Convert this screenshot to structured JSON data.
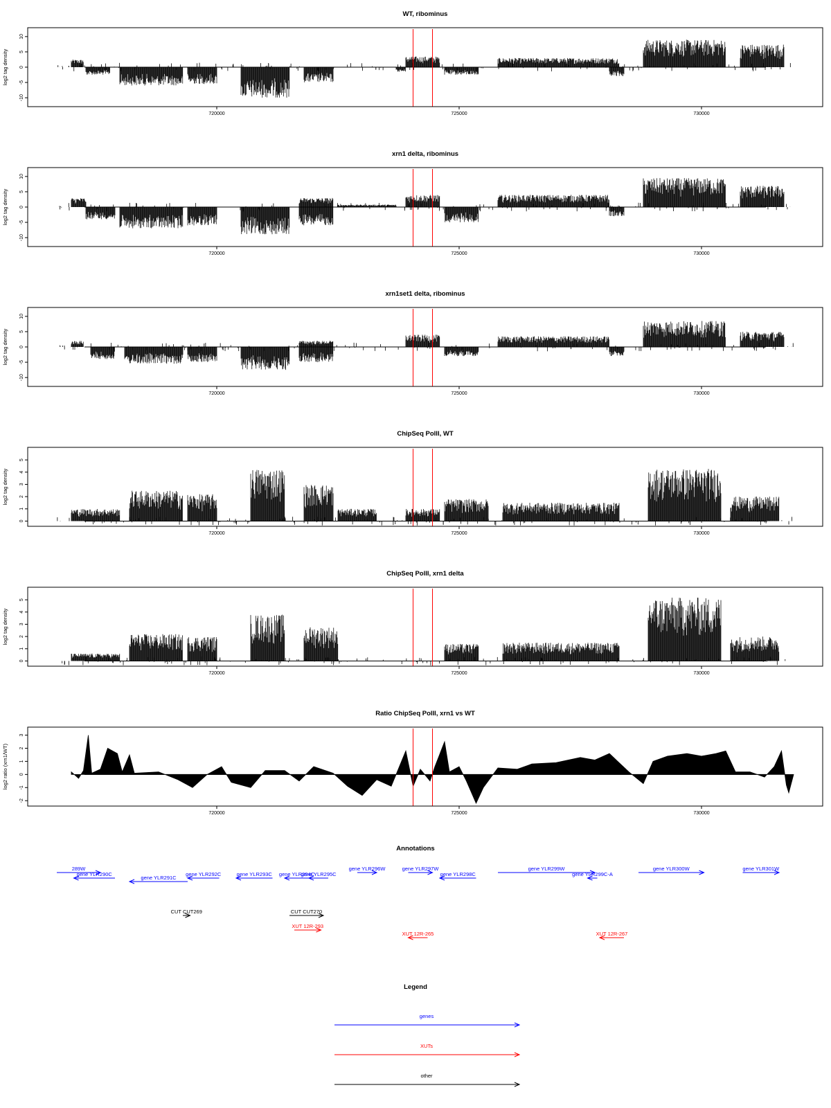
{
  "chart_data": [
    {
      "type": "area",
      "title": "WT, ribominus",
      "ylabel": "log2 tag density",
      "xlim": [
        716700,
        731900
      ],
      "ylim": [
        -12,
        12
      ],
      "x_ticks": [
        "720000",
        "725000",
        "730000"
      ],
      "y_ticks": [
        "-10",
        "-5",
        "0",
        "5",
        "10"
      ],
      "markers_x": [
        724050,
        724450
      ],
      "series": [
        {
          "segments": [
            {
              "x": [
                717000,
                717250
              ],
              "level": 2.5
            },
            {
              "x": [
                717300,
                717800
              ],
              "level": -2.5
            },
            {
              "x": [
                718000,
                719300
              ],
              "level": -6
            },
            {
              "x": [
                719400,
                720000
              ],
              "level": -5.5
            },
            {
              "x": [
                720500,
                721500
              ],
              "level": -10
            },
            {
              "x": [
                721800,
                722400
              ],
              "level": -5
            },
            {
              "x": [
                723700,
                723900
              ],
              "level": -1.5
            },
            {
              "x": [
                723900,
                724600
              ],
              "level": 3.5
            },
            {
              "x": [
                724700,
                725400
              ],
              "level": -2.5
            },
            {
              "x": [
                725800,
                728300
              ],
              "level": 3
            },
            {
              "x": [
                728100,
                728400
              ],
              "level": -3
            },
            {
              "x": [
                728800,
                730500
              ],
              "level": 9
            },
            {
              "x": [
                730800,
                731700
              ],
              "level": 7.5
            }
          ]
        }
      ]
    },
    {
      "type": "area",
      "title": "xrn1 delta, ribominus",
      "ylabel": "log2 tag density",
      "xlim": [
        716700,
        731900
      ],
      "ylim": [
        -12,
        12
      ],
      "x_ticks": [
        "720000",
        "725000",
        "730000"
      ],
      "y_ticks": [
        "-10",
        "-5",
        "0",
        "5",
        "10"
      ],
      "markers_x": [
        724050,
        724450
      ],
      "series": [
        {
          "segments": [
            {
              "x": [
                717000,
                717300
              ],
              "level": 3
            },
            {
              "x": [
                717300,
                717900
              ],
              "level": -4
            },
            {
              "x": [
                718000,
                719300
              ],
              "level": -7
            },
            {
              "x": [
                719400,
                720000
              ],
              "level": -6
            },
            {
              "x": [
                720500,
                721500
              ],
              "level": -9
            },
            {
              "x": [
                721700,
                722400
              ],
              "level": -6
            },
            {
              "x": [
                721700,
                722400
              ],
              "level": 3
            },
            {
              "x": [
                722500,
                723700
              ],
              "level": 0.8
            },
            {
              "x": [
                723900,
                724600
              ],
              "level": 4
            },
            {
              "x": [
                724700,
                725400
              ],
              "level": -5
            },
            {
              "x": [
                725800,
                728100
              ],
              "level": 4
            },
            {
              "x": [
                728100,
                728400
              ],
              "level": -3
            },
            {
              "x": [
                728800,
                730500
              ],
              "level": 9.5
            },
            {
              "x": [
                730800,
                731700
              ],
              "level": 7
            }
          ]
        }
      ]
    },
    {
      "type": "area",
      "title": "xrn1set1 delta, ribominus",
      "ylabel": "log2 tag density",
      "xlim": [
        716700,
        731900
      ],
      "ylim": [
        -12,
        12
      ],
      "x_ticks": [
        "720000",
        "725000",
        "730000"
      ],
      "y_ticks": [
        "-10",
        "-5",
        "0",
        "5",
        "10"
      ],
      "markers_x": [
        724050,
        724450
      ],
      "series": [
        {
          "segments": [
            {
              "x": [
                717000,
                717250
              ],
              "level": 2
            },
            {
              "x": [
                717400,
                717900
              ],
              "level": -4
            },
            {
              "x": [
                718100,
                719300
              ],
              "level": -5.5
            },
            {
              "x": [
                719400,
                720000
              ],
              "level": -5
            },
            {
              "x": [
                720500,
                721500
              ],
              "level": -7.5
            },
            {
              "x": [
                721700,
                722400
              ],
              "level": -5
            },
            {
              "x": [
                721700,
                722400
              ],
              "level": 2
            },
            {
              "x": [
                723900,
                724600
              ],
              "level": 4
            },
            {
              "x": [
                724700,
                725400
              ],
              "level": -3
            },
            {
              "x": [
                725800,
                728100
              ],
              "level": 3.5
            },
            {
              "x": [
                728100,
                728400
              ],
              "level": -3
            },
            {
              "x": [
                728800,
                730500
              ],
              "level": 8.5
            },
            {
              "x": [
                730800,
                731700
              ],
              "level": 5
            }
          ]
        }
      ]
    },
    {
      "type": "area",
      "title": "ChipSeq PolII, WT",
      "ylabel": "log2 tag density",
      "xlim": [
        716700,
        731900
      ],
      "ylim": [
        -0.2,
        5.8
      ],
      "x_ticks": [
        "720000",
        "725000",
        "730000"
      ],
      "y_ticks": [
        "0",
        "1",
        "2",
        "3",
        "4",
        "5"
      ],
      "markers_x": [
        724050,
        724450
      ],
      "series": [
        {
          "segments": [
            {
              "x": [
                717000,
                718000
              ],
              "level": 1
            },
            {
              "x": [
                718200,
                719300
              ],
              "level": 2.5
            },
            {
              "x": [
                719400,
                720000
              ],
              "level": 2.2
            },
            {
              "x": [
                720700,
                721400
              ],
              "level": 4.3
            },
            {
              "x": [
                721800,
                722400
              ],
              "level": 3
            },
            {
              "x": [
                722500,
                723300
              ],
              "level": 1
            },
            {
              "x": [
                723900,
                724600
              ],
              "level": 1
            },
            {
              "x": [
                724700,
                725600
              ],
              "level": 1.8
            },
            {
              "x": [
                725900,
                728300
              ],
              "level": 1.5
            },
            {
              "x": [
                728900,
                730400
              ],
              "level": 4.3
            },
            {
              "x": [
                730600,
                731600
              ],
              "level": 2
            }
          ]
        }
      ]
    },
    {
      "type": "area",
      "title": "ChipSeq PolII, xrn1 delta",
      "ylabel": "log2 tag density",
      "xlim": [
        716700,
        731900
      ],
      "ylim": [
        -0.2,
        5.8
      ],
      "x_ticks": [
        "720000",
        "725000",
        "730000"
      ],
      "y_ticks": [
        "0",
        "1",
        "2",
        "3",
        "4",
        "5"
      ],
      "markers_x": [
        724050,
        724450
      ],
      "series": [
        {
          "segments": [
            {
              "x": [
                717000,
                718000
              ],
              "level": 0.6
            },
            {
              "x": [
                718200,
                719300
              ],
              "level": 2.2
            },
            {
              "x": [
                719400,
                720000
              ],
              "level": 2
            },
            {
              "x": [
                720700,
                721400
              ],
              "level": 3.8
            },
            {
              "x": [
                721800,
                722500
              ],
              "level": 2.8
            },
            {
              "x": [
                724700,
                725400
              ],
              "level": 1.4
            },
            {
              "x": [
                725900,
                728300
              ],
              "level": 1.5
            },
            {
              "x": [
                728900,
                730400
              ],
              "level": 5.2
            },
            {
              "x": [
                730600,
                731600
              ],
              "level": 2
            }
          ]
        }
      ]
    },
    {
      "type": "area",
      "title": "Ratio ChipSeq PolII, xrn1 vs WT",
      "ylabel": "log2 ratio (xrn1/WT)",
      "xlim": [
        716700,
        731900
      ],
      "ylim": [
        -2.2,
        3.4
      ],
      "x_ticks": [
        "720000",
        "725000",
        "730000"
      ],
      "y_ticks": [
        "-2",
        "-1",
        "0",
        "1",
        "2",
        "3"
      ],
      "markers_x": [
        724050,
        724450
      ],
      "series": [
        {
          "points": [
            [
              717000,
              0.2
            ],
            [
              717150,
              -0.3
            ],
            [
              717250,
              0.3
            ],
            [
              717350,
              3.0
            ],
            [
              717420,
              0.1
            ],
            [
              717600,
              0.4
            ],
            [
              717750,
              2.0
            ],
            [
              717950,
              1.6
            ],
            [
              718050,
              0.2
            ],
            [
              718200,
              1.5
            ],
            [
              718300,
              0.1
            ],
            [
              718800,
              0.2
            ],
            [
              719200,
              -0.4
            ],
            [
              719500,
              -1.0
            ],
            [
              719800,
              0.0
            ],
            [
              720100,
              0.6
            ],
            [
              720300,
              -0.6
            ],
            [
              720700,
              -1.0
            ],
            [
              721000,
              0.3
            ],
            [
              721400,
              0.3
            ],
            [
              721700,
              -0.5
            ],
            [
              722000,
              0.6
            ],
            [
              722400,
              0.1
            ],
            [
              722700,
              -0.9
            ],
            [
              723000,
              -1.6
            ],
            [
              723300,
              -0.4
            ],
            [
              723600,
              -0.9
            ],
            [
              723900,
              1.8
            ],
            [
              724050,
              -0.9
            ],
            [
              724200,
              0.4
            ],
            [
              724400,
              -0.5
            ],
            [
              724500,
              0.6
            ],
            [
              724700,
              2.5
            ],
            [
              724800,
              0.2
            ],
            [
              725000,
              0.6
            ],
            [
              725150,
              -0.5
            ],
            [
              725350,
              -2.2
            ],
            [
              725500,
              -1.0
            ],
            [
              725800,
              0.5
            ],
            [
              726200,
              0.4
            ],
            [
              726500,
              0.8
            ],
            [
              727000,
              0.9
            ],
            [
              727500,
              1.3
            ],
            [
              727800,
              1.1
            ],
            [
              728100,
              1.6
            ],
            [
              728500,
              0.2
            ],
            [
              728800,
              -0.7
            ],
            [
              729000,
              1.0
            ],
            [
              729300,
              1.4
            ],
            [
              729700,
              1.6
            ],
            [
              730000,
              1.4
            ],
            [
              730300,
              1.6
            ],
            [
              730500,
              1.8
            ],
            [
              730700,
              0.2
            ],
            [
              731000,
              0.2
            ],
            [
              731300,
              -0.2
            ],
            [
              731500,
              0.6
            ],
            [
              731650,
              1.8
            ],
            [
              731750,
              -0.8
            ],
            [
              731800,
              -1.4
            ],
            [
              731900,
              0.0
            ]
          ]
        }
      ]
    }
  ],
  "annotations": {
    "title": "Annotations",
    "xlim": [
      716700,
      731900
    ],
    "colors": {
      "genes": "#0000ff",
      "XUTs": "#ff0000",
      "other": "#000000"
    },
    "features": [
      {
        "label": "289W",
        "start": 716700,
        "end": 717600,
        "dir": "right",
        "row": 0,
        "kind": "genes"
      },
      {
        "label": "gene YLR290C",
        "start": 717050,
        "end": 717900,
        "dir": "left",
        "row": 1,
        "kind": "genes"
      },
      {
        "label": "gene YLR291C",
        "start": 718200,
        "end": 719400,
        "dir": "left",
        "row": 2,
        "kind": "genes"
      },
      {
        "label": "gene YLR292C",
        "start": 719400,
        "end": 720050,
        "dir": "left",
        "row": 1,
        "kind": "genes"
      },
      {
        "label": "gene YLR293C",
        "start": 720400,
        "end": 721150,
        "dir": "left",
        "row": 1,
        "kind": "genes"
      },
      {
        "label": "gene YLR294C",
        "start": 721400,
        "end": 721900,
        "dir": "left",
        "row": 1,
        "kind": "genes"
      },
      {
        "label": "gene YLR295C",
        "start": 721900,
        "end": 722300,
        "dir": "left",
        "row": 1,
        "kind": "genes"
      },
      {
        "label": "gene YLR296W",
        "start": 722900,
        "end": 723300,
        "dir": "right",
        "row": 0,
        "kind": "genes"
      },
      {
        "label": "gene YLR297W",
        "start": 723950,
        "end": 724450,
        "dir": "right",
        "row": 0,
        "kind": "genes"
      },
      {
        "label": "gene YLR298C",
        "start": 724600,
        "end": 725350,
        "dir": "left",
        "row": 1,
        "kind": "genes"
      },
      {
        "label": "gene YLR299W",
        "start": 725800,
        "end": 727800,
        "dir": "right",
        "row": 0,
        "kind": "genes"
      },
      {
        "label": "gene YLR299C-A",
        "start": 727650,
        "end": 727850,
        "dir": "left",
        "row": 1,
        "kind": "genes"
      },
      {
        "label": "gene YLR300W",
        "start": 728700,
        "end": 730050,
        "dir": "right",
        "row": 0,
        "kind": "genes"
      },
      {
        "label": "gene YLR301W",
        "start": 730850,
        "end": 731600,
        "dir": "right",
        "row": 0,
        "kind": "genes"
      },
      {
        "label": "CUT CUT269",
        "start": 719300,
        "end": 719450,
        "dir": "right",
        "row": 3,
        "kind": "other"
      },
      {
        "label": "CUT CUT270",
        "start": 721500,
        "end": 722200,
        "dir": "right",
        "row": 3,
        "kind": "other"
      },
      {
        "label": "XUT 12R-293",
        "start": 721600,
        "end": 722150,
        "dir": "right",
        "row": 4,
        "kind": "XUTs"
      },
      {
        "label": "XUT 12R-265",
        "start": 723950,
        "end": 724350,
        "dir": "left",
        "row": 5,
        "kind": "XUTs"
      },
      {
        "label": "XUT 12R-267",
        "start": 727900,
        "end": 728400,
        "dir": "left",
        "row": 5,
        "kind": "XUTs"
      }
    ]
  },
  "legend": {
    "title": "Legend",
    "items": [
      {
        "label": "genes",
        "color": "#0000ff"
      },
      {
        "label": "XUTs",
        "color": "#ff0000"
      },
      {
        "label": "other",
        "color": "#000000"
      }
    ]
  }
}
